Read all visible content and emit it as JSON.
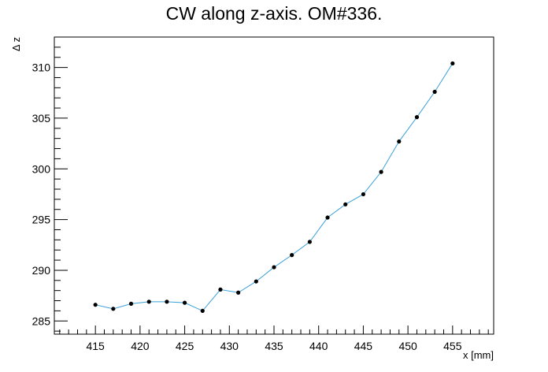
{
  "chart_data": {
    "type": "line",
    "title": "CW along z-axis. OM#336.",
    "xlabel": "x [mm]",
    "ylabel": "Δ z",
    "xlim": [
      410.4,
      459.6
    ],
    "ylim": [
      283.7,
      313.0
    ],
    "xticks": [
      415,
      420,
      425,
      430,
      435,
      440,
      445,
      450,
      455
    ],
    "yticks": [
      285,
      290,
      295,
      300,
      305,
      310
    ],
    "grid": false,
    "series": [
      {
        "color": "#3aa0d8",
        "marker_color": "#000000",
        "x": [
          415,
          417,
          419,
          421,
          423,
          425,
          427,
          429,
          431,
          433,
          435,
          437,
          439,
          441,
          443,
          445,
          447,
          449,
          451,
          453,
          455
        ],
        "y": [
          286.6,
          286.2,
          286.7,
          286.9,
          286.9,
          286.8,
          286.0,
          288.1,
          287.8,
          288.9,
          290.3,
          291.5,
          292.8,
          295.2,
          296.5,
          297.5,
          299.7,
          302.7,
          305.1,
          307.6,
          310.4
        ]
      }
    ]
  }
}
